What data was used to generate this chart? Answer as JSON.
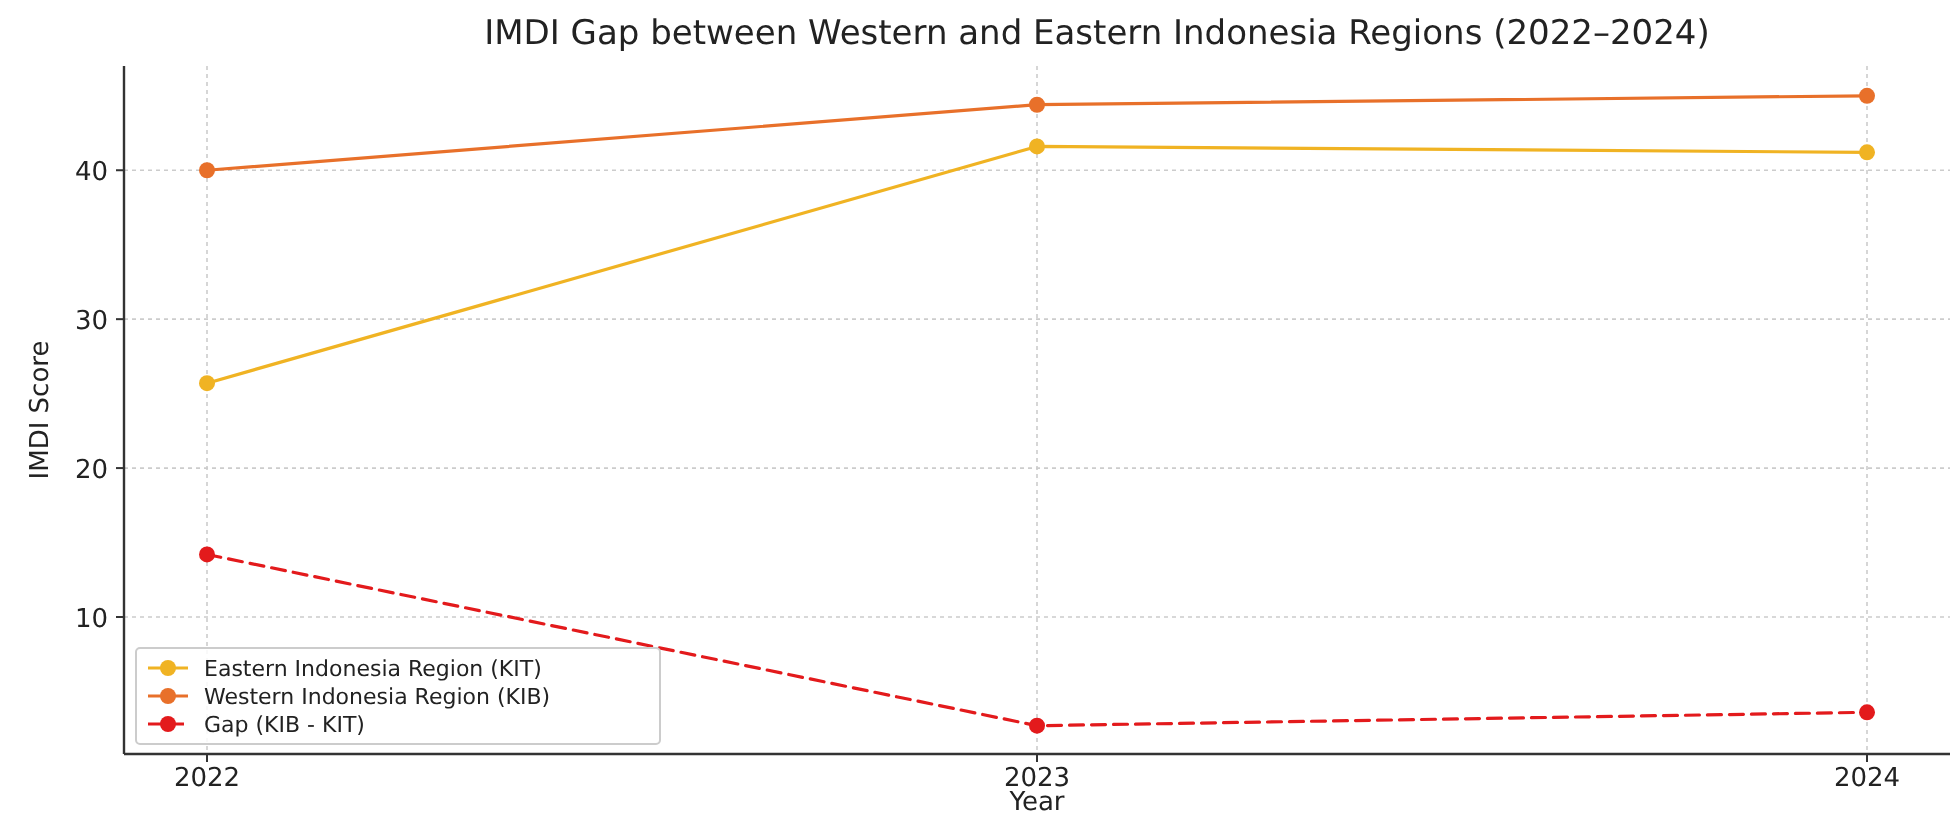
{
  "chart_data": {
    "type": "line",
    "title": "IMDI Gap between Western and Eastern Indonesia Regions (2022–2024)",
    "xlabel": "Year",
    "ylabel": "IMDI Score",
    "x": [
      2022,
      2023,
      2024
    ],
    "xlim": [
      2021.9,
      2024.1
    ],
    "xticks": [
      2022,
      2023,
      2024
    ],
    "ylim": [
      0.8,
      47
    ],
    "yticks": [
      10,
      20,
      30,
      40
    ],
    "grid": true,
    "legend": "bottom left",
    "marker": "circle",
    "series": [
      {
        "name": "Eastern Indonesia Region (KIT)",
        "color": "#f0b323",
        "values": [
          25.7,
          41.6,
          41.2
        ]
      },
      {
        "name": "Western Indonesia Region (KIB)",
        "color": "#e8702a",
        "values": [
          40,
          44.4,
          45.0
        ]
      },
      {
        "name": "Gap (KIB - KIT)",
        "color": "#e31a1c",
        "values": [
          14.2,
          2.7,
          3.6
        ],
        "line_style": "dashed"
      }
    ]
  }
}
